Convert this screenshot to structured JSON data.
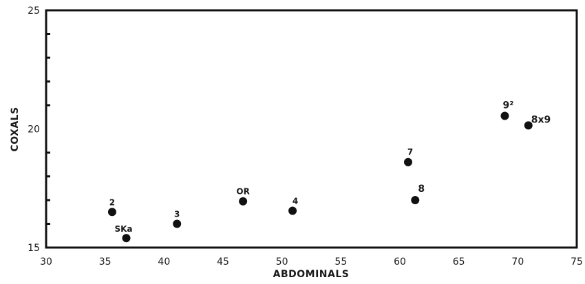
{
  "chart_data": {
    "type": "scatter",
    "title": "",
    "xlabel": "ABDOMINALS",
    "ylabel": "COXALS",
    "xlim": [
      30,
      75
    ],
    "ylim": [
      15,
      25
    ],
    "x_ticks": [
      "30",
      "35",
      "40",
      "45",
      "50",
      "55",
      "60",
      "65",
      "70",
      "75"
    ],
    "y_ticks": [
      "15",
      "20",
      "25"
    ],
    "grid": false,
    "series": [
      {
        "points": [
          {
            "label": "2",
            "x": 35.6,
            "y": 16.5
          },
          {
            "label": "SKa",
            "x": 36.8,
            "y": 15.4
          },
          {
            "label": "3",
            "x": 41.1,
            "y": 16.0
          },
          {
            "label": "OR",
            "x": 46.7,
            "y": 16.95
          },
          {
            "label": "4",
            "x": 50.9,
            "y": 16.55
          },
          {
            "label": "7",
            "x": 60.7,
            "y": 18.6
          },
          {
            "label": "8",
            "x": 61.3,
            "y": 17.0
          },
          {
            "label": "9²",
            "x": 68.9,
            "y": 20.55
          },
          {
            "label": "8x9",
            "x": 70.9,
            "y": 20.15
          }
        ]
      }
    ]
  }
}
